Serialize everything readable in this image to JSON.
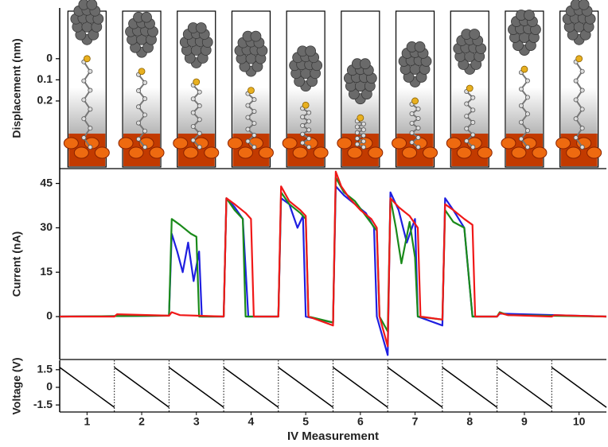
{
  "chart_data": [
    {
      "type": "molecule",
      "y_label": "Displacement (nm)",
      "values": [
        0,
        0.06,
        0.11,
        0.15,
        0.22,
        0.28,
        0.2,
        0.14,
        0.05,
        0
      ],
      "ylim": [
        -0.24,
        0.52
      ],
      "yticks": [
        0,
        0.1,
        0.2
      ],
      "y_inverted": true
    },
    {
      "type": "line",
      "y_label": "Current (nA)",
      "xlim": [
        0.5,
        10.5
      ],
      "ylim": [
        -14.5,
        50
      ],
      "yticks": [
        0,
        15,
        30,
        45
      ],
      "series": [
        {
          "color": "#1f1fe0",
          "x": [
            0.5,
            2.5,
            2.55,
            2.65,
            2.75,
            2.85,
            2.95,
            3.05,
            3.1,
            3.5,
            3.55,
            3.7,
            3.85,
            3.95,
            4.5,
            4.55,
            4.7,
            4.85,
            4.95,
            5.0,
            5.5,
            5.55,
            5.7,
            5.9,
            6.1,
            6.25,
            6.3,
            6.5,
            6.55,
            6.7,
            6.85,
            7.0,
            7.05,
            7.5,
            7.55,
            7.7,
            7.9,
            8.05,
            8.5,
            8.55,
            10.5
          ],
          "values": [
            0,
            0.3,
            28,
            22,
            15,
            25,
            12,
            22,
            0,
            0,
            40,
            37,
            33,
            0,
            0,
            40,
            38,
            30,
            34,
            0,
            -2,
            44,
            41,
            38,
            35,
            30,
            0,
            -13,
            42,
            36,
            25,
            33,
            0,
            -3,
            40,
            36,
            30,
            0,
            0,
            1,
            0
          ]
        },
        {
          "color": "#1a8a1a",
          "x": [
            0.5,
            2.5,
            2.55,
            2.7,
            2.9,
            3.0,
            3.05,
            3.5,
            3.55,
            3.7,
            3.85,
            3.9,
            4.5,
            4.55,
            4.7,
            4.9,
            5.0,
            5.05,
            5.5,
            5.55,
            5.7,
            5.9,
            6.1,
            6.3,
            6.35,
            6.5,
            6.55,
            6.65,
            6.75,
            6.9,
            7.0,
            7.05,
            7.5,
            7.55,
            7.7,
            7.9,
            8.05,
            8.5,
            8.55,
            8.7,
            10.5
          ],
          "values": [
            0,
            0.3,
            33,
            31,
            28,
            27,
            0,
            0,
            40,
            36,
            33,
            0,
            0,
            42,
            38,
            35,
            33,
            0,
            -2,
            47,
            42,
            39,
            34,
            29,
            0,
            -5,
            40,
            30,
            18,
            32,
            20,
            0,
            -1,
            36,
            32,
            30,
            0,
            0,
            1.5,
            0.5,
            0
          ]
        },
        {
          "color": "#f01818",
          "x": [
            0.5,
            1.5,
            1.55,
            2.5,
            2.55,
            2.7,
            3.5,
            3.55,
            3.7,
            3.9,
            4.0,
            4.05,
            4.5,
            4.55,
            4.7,
            4.9,
            5.0,
            5.05,
            5.5,
            5.55,
            5.65,
            5.8,
            6.0,
            6.2,
            6.3,
            6.35,
            6.5,
            6.55,
            6.7,
            6.9,
            7.05,
            7.1,
            7.5,
            7.55,
            7.7,
            7.9,
            8.05,
            8.1,
            8.5,
            8.55,
            8.7,
            9.5,
            9.55,
            10.5
          ],
          "values": [
            0,
            0,
            0.8,
            0.3,
            1.5,
            0.5,
            0,
            40,
            38,
            35,
            33,
            0,
            0,
            44,
            39,
            36,
            34,
            0,
            -3,
            49,
            44,
            40,
            36,
            33,
            30,
            0,
            -10,
            40,
            37,
            34,
            30,
            0,
            -1,
            38,
            36,
            33,
            31,
            0,
            0,
            1.2,
            0.5,
            0,
            0.5,
            0
          ]
        }
      ]
    },
    {
      "type": "line",
      "y_label": "Voltage (V)",
      "x_label": "IV Measurement",
      "xlim": [
        0.5,
        10.5
      ],
      "xticks": [
        1,
        2,
        3,
        4,
        5,
        6,
        7,
        8,
        9,
        10
      ],
      "ylim": [
        -2.1,
        2.3
      ],
      "yticks": [
        1.5,
        0,
        -1.5
      ],
      "series": [
        {
          "color": "#000000",
          "x": [
            0.5,
            1.5,
            1.5,
            1.5,
            2.5,
            2.5,
            2.5,
            3.5,
            3.5,
            3.5,
            4.5,
            4.5,
            4.5,
            5.5,
            5.5,
            5.5,
            6.5,
            6.5,
            6.5,
            7.5,
            7.5,
            7.5,
            8.5,
            8.5,
            8.5,
            9.5,
            9.5,
            9.5,
            10.5
          ],
          "values": [
            1.7,
            -1.7,
            null,
            1.7,
            -1.7,
            null,
            1.7,
            -1.7,
            null,
            1.7,
            -1.7,
            null,
            1.7,
            -1.7,
            null,
            1.7,
            -1.7,
            null,
            1.7,
            -1.7,
            null,
            1.7,
            -1.7,
            null,
            1.7,
            -1.7,
            null,
            1.7,
            -1.7
          ]
        }
      ]
    }
  ]
}
